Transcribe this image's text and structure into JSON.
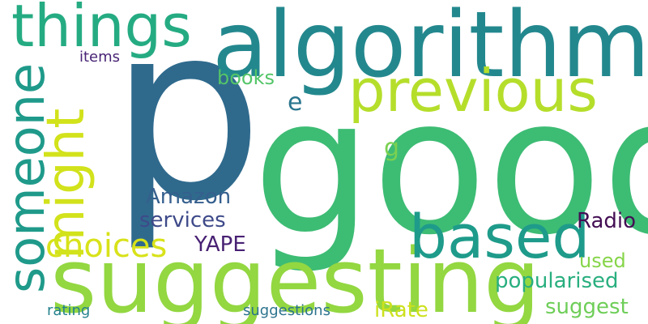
{
  "words": {
    "p": {
      "text": "p",
      "color": "#2f6a8d"
    },
    "good": {
      "text": "good",
      "color": "#3dbc74"
    },
    "algorithm": {
      "text": "algorithm",
      "color": "#23888e"
    },
    "suggesting": {
      "text": "suggesting",
      "color": "#93d741"
    },
    "things": {
      "text": "things",
      "color": "#25ab82"
    },
    "previous": {
      "text": "previous",
      "color": "#b5de2b"
    },
    "based": {
      "text": "based",
      "color": "#1e9b8a"
    },
    "someone": {
      "text": "someone",
      "color": "#1f9a8a"
    },
    "might": {
      "text": "might",
      "color": "#d2e21b"
    },
    "choices": {
      "text": "choices",
      "color": "#d8e219"
    },
    "amazon": {
      "text": "Amazon",
      "color": "#355f8d"
    },
    "services": {
      "text": "services",
      "color": "#3e4a89"
    },
    "yape": {
      "text": "YAPE",
      "color": "#482173"
    },
    "radio": {
      "text": "Radio",
      "color": "#440f54"
    },
    "books": {
      "text": "books",
      "color": "#54c568"
    },
    "items": {
      "text": "items",
      "color": "#482475"
    },
    "e": {
      "text": "e",
      "color": "#2a768e"
    },
    "g": {
      "text": "g",
      "color": "#7ad151"
    },
    "used": {
      "text": "used",
      "color": "#86d549"
    },
    "popularised": {
      "text": "popularised",
      "color": "#29af7f"
    },
    "suggest": {
      "text": "suggest",
      "color": "#6ece58"
    },
    "rating": {
      "text": "rating",
      "color": "#26828e"
    },
    "suggestions": {
      "text": "suggestions",
      "color": "#2c738e"
    },
    "irate": {
      "text": "iRate",
      "color": "#cde11d"
    }
  }
}
